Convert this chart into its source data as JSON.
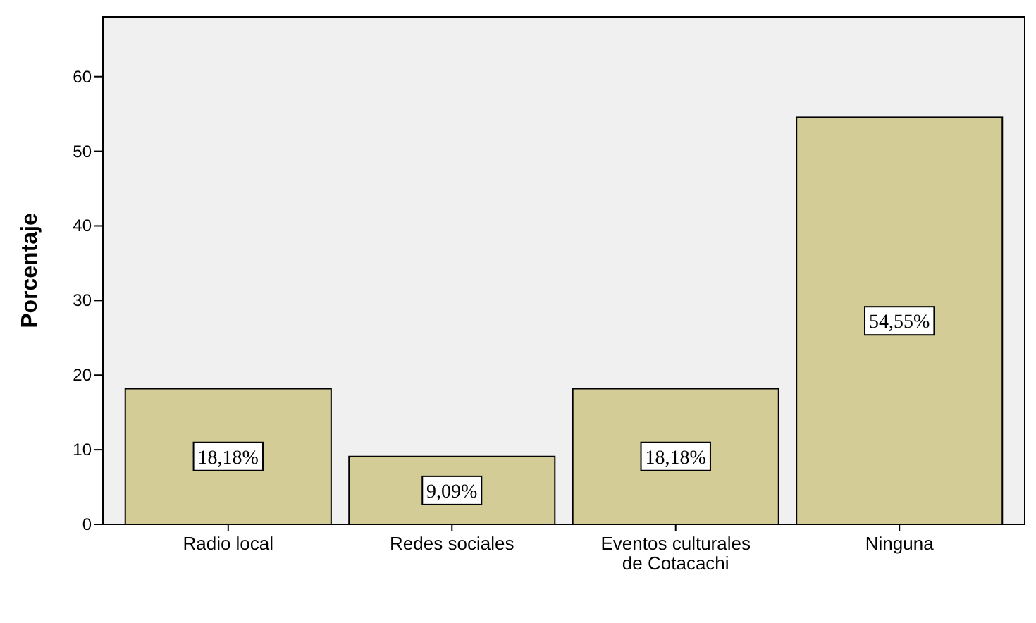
{
  "chart_data": {
    "type": "bar",
    "ylabel": "Porcentaje",
    "categories": [
      "Radio local",
      "Redes sociales",
      "Eventos culturales de Cotacachi",
      "Ninguna"
    ],
    "values": [
      18.18,
      9.09,
      18.18,
      54.55
    ],
    "value_labels": [
      "18,18%",
      "9,09%",
      "18,18%",
      "54,55%"
    ],
    "color": "#d3cc97",
    "ylim": [
      0,
      68
    ],
    "yticks": [
      0,
      10,
      20,
      30,
      40,
      50,
      60
    ],
    "grid": false
  }
}
